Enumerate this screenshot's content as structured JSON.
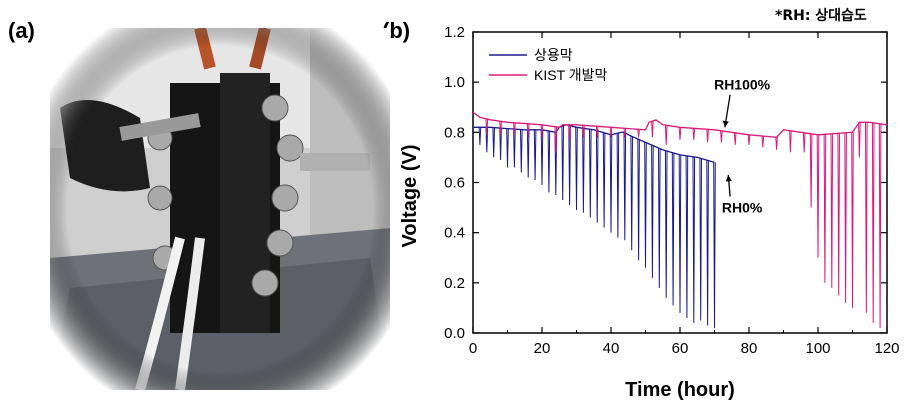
{
  "panel_labels": {
    "a": "(a)",
    "b": "(b)"
  },
  "note": "*RH: 상대습도",
  "chart_data": {
    "type": "line",
    "title": "",
    "xlabel": "Time (hour)",
    "ylabel": "Voltage (V)",
    "xlim": [
      0,
      120
    ],
    "ylim": [
      0.0,
      1.2
    ],
    "x_ticks": [
      0,
      20,
      40,
      60,
      80,
      100,
      120
    ],
    "y_ticks": [
      0.0,
      0.2,
      0.4,
      0.6,
      0.8,
      1.0,
      1.2
    ],
    "x_tick_labels": [
      "0",
      "20",
      "40",
      "60",
      "80",
      "100",
      "120"
    ],
    "y_tick_labels": [
      "0.0",
      "0.2",
      "0.4",
      "0.6",
      "0.8",
      "1.0",
      "1.2"
    ],
    "grid": false,
    "legend_position": "top-left",
    "series": [
      {
        "name": "상용막",
        "color": "#1a1a8c",
        "baseline": [
          [
            0,
            0.82
          ],
          [
            5,
            0.82
          ],
          [
            10,
            0.815
          ],
          [
            15,
            0.81
          ],
          [
            20,
            0.81
          ],
          [
            24,
            0.8
          ],
          [
            25,
            0.82
          ],
          [
            27,
            0.83
          ],
          [
            30,
            0.82
          ],
          [
            35,
            0.81
          ],
          [
            40,
            0.79
          ],
          [
            43,
            0.8
          ],
          [
            44,
            0.8
          ],
          [
            45,
            0.79
          ],
          [
            50,
            0.76
          ],
          [
            55,
            0.73
          ],
          [
            60,
            0.71
          ],
          [
            65,
            0.7
          ],
          [
            70,
            0.68
          ]
        ],
        "spike_times": [
          2,
          4,
          6,
          8,
          10,
          12,
          14,
          16,
          18,
          20,
          22,
          24,
          26,
          28,
          30,
          32,
          34,
          36,
          38,
          40,
          42,
          44,
          46,
          48,
          50,
          52,
          54,
          56,
          58,
          60,
          62,
          64,
          66,
          68,
          70
        ],
        "spike_minima": [
          0.75,
          0.72,
          0.7,
          0.69,
          0.66,
          0.66,
          0.64,
          0.62,
          0.61,
          0.59,
          0.56,
          0.55,
          0.53,
          0.51,
          0.49,
          0.48,
          0.46,
          0.44,
          0.42,
          0.4,
          0.38,
          0.37,
          0.33,
          0.29,
          0.26,
          0.22,
          0.18,
          0.14,
          0.11,
          0.08,
          0.06,
          0.04,
          0.05,
          0.03,
          0.02
        ]
      },
      {
        "name": "KIST 개발막",
        "color": "#d81b7a",
        "baseline": [
          [
            0,
            0.88
          ],
          [
            2,
            0.86
          ],
          [
            5,
            0.85
          ],
          [
            10,
            0.84
          ],
          [
            20,
            0.83
          ],
          [
            25,
            0.82
          ],
          [
            26,
            0.83
          ],
          [
            30,
            0.83
          ],
          [
            40,
            0.82
          ],
          [
            50,
            0.81
          ],
          [
            51,
            0.84
          ],
          [
            53,
            0.85
          ],
          [
            55,
            0.83
          ],
          [
            60,
            0.82
          ],
          [
            70,
            0.81
          ],
          [
            80,
            0.79
          ],
          [
            88,
            0.78
          ],
          [
            90,
            0.81
          ],
          [
            95,
            0.8
          ],
          [
            100,
            0.79
          ],
          [
            110,
            0.8
          ],
          [
            112,
            0.84
          ],
          [
            115,
            0.84
          ],
          [
            120,
            0.83
          ]
        ],
        "spike_times": [
          4,
          8,
          12,
          16,
          20,
          24,
          28,
          32,
          36,
          40,
          44,
          48,
          52,
          56,
          60,
          64,
          68,
          72,
          76,
          80,
          84,
          88,
          92,
          96,
          98,
          100,
          102,
          104,
          106,
          108,
          110,
          112,
          114,
          116,
          118
        ],
        "spike_minima": [
          0.79,
          0.79,
          0.79,
          0.78,
          0.78,
          0.72,
          0.77,
          0.78,
          0.78,
          0.78,
          0.78,
          0.78,
          0.78,
          0.75,
          0.77,
          0.77,
          0.76,
          0.76,
          0.75,
          0.75,
          0.74,
          0.73,
          0.72,
          0.72,
          0.5,
          0.3,
          0.2,
          0.18,
          0.15,
          0.12,
          0.1,
          0.7,
          0.08,
          0.04,
          0.02
        ]
      }
    ],
    "annotations": [
      {
        "text": "RH100%",
        "x": 78,
        "y": 0.97,
        "arrow_to": [
          73,
          0.82
        ]
      },
      {
        "text": "RH0%",
        "x": 78,
        "y": 0.48,
        "arrow_to": [
          74,
          0.63
        ]
      }
    ]
  }
}
